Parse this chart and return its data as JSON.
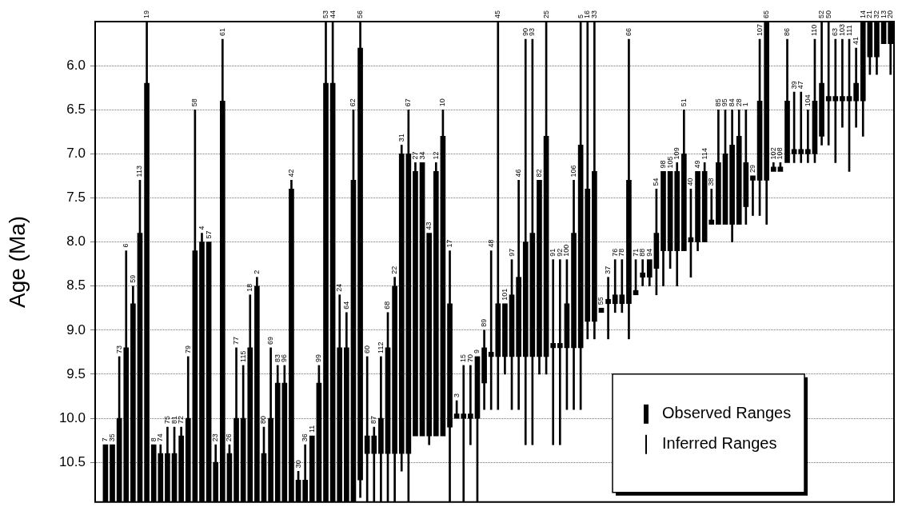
{
  "chart_data": {
    "type": "bar",
    "ylabel": "Age (Ma)",
    "categories": [
      "7",
      "35",
      "73",
      "6",
      "59",
      "113",
      "19",
      "8",
      "74",
      "75",
      "81",
      "72",
      "79",
      "58",
      "4",
      "57",
      "23",
      "61",
      "26",
      "77",
      "115",
      "18",
      "2",
      "80",
      "69",
      "83",
      "96",
      "42",
      "30",
      "36",
      "11",
      "99",
      "53",
      "44",
      "24",
      "64",
      "62",
      "56",
      "60",
      "87",
      "112",
      "68",
      "22",
      "31",
      "67",
      "27",
      "34",
      "43",
      "12",
      "10",
      "17",
      "3",
      "15",
      "70",
      "9",
      "89",
      "48",
      "45",
      "101",
      "97",
      "46",
      "90",
      "93",
      "82",
      "25",
      "91",
      "92",
      "100",
      "106",
      "5",
      "16",
      "33",
      "55",
      "37",
      "76",
      "78",
      "66",
      "71",
      "88",
      "94",
      "54",
      "98",
      "105",
      "109",
      "51",
      "40",
      "49",
      "114",
      "38",
      "85",
      "95",
      "84",
      "28",
      "1",
      "29",
      "107",
      "65",
      "102",
      "108",
      "86",
      "39",
      "47",
      "104",
      "110",
      "52",
      "50",
      "63",
      "103",
      "111",
      "41",
      "14",
      "21",
      "32",
      "13",
      "20"
    ],
    "series": [
      {
        "name": "Observed Ranges",
        "color": "#000000",
        "base": [
          10.3,
          10.3,
          10.0,
          9.2,
          8.7,
          7.9,
          6.2,
          10.3,
          10.4,
          10.4,
          10.4,
          10.2,
          10.0,
          8.1,
          8.0,
          8.0,
          10.5,
          6.4,
          10.4,
          10.0,
          10.0,
          9.2,
          8.5,
          10.4,
          10.0,
          9.6,
          9.6,
          7.4,
          10.7,
          10.7,
          10.2,
          9.6,
          6.2,
          6.2,
          9.2,
          9.2,
          7.3,
          5.8,
          10.2,
          10.2,
          10.0,
          9.2,
          8.5,
          7.0,
          7.0,
          7.2,
          7.1,
          7.9,
          7.2,
          6.8,
          8.7,
          9.95,
          9.95,
          9.95,
          9.3,
          9.2,
          9.25,
          8.7,
          8.7,
          8.6,
          8.4,
          8.0,
          7.9,
          7.3,
          6.8,
          9.15,
          9.15,
          8.7,
          7.9,
          6.9,
          7.4,
          7.2,
          8.75,
          8.65,
          8.6,
          8.6,
          7.3,
          8.55,
          8.35,
          8.2,
          7.9,
          7.2,
          7.2,
          7.2,
          7.0,
          7.95,
          7.2,
          7.2,
          7.75,
          7.1,
          7.0,
          6.9,
          6.8,
          7.1,
          7.25,
          6.4,
          5.5,
          7.15,
          7.15,
          6.4,
          6.95,
          6.95,
          6.95,
          6.4,
          6.2,
          6.35,
          6.35,
          6.35,
          6.35,
          6.2,
          5.5,
          5.5,
          5.5,
          5.5,
          5.5
        ],
        "values": [
          0.65,
          0.65,
          0.95,
          1.75,
          2.25,
          3.05,
          4.75,
          0.65,
          0.55,
          0.55,
          0.55,
          0.75,
          0.95,
          2.85,
          2.95,
          2.95,
          0.45,
          4.55,
          0.55,
          0.95,
          0.95,
          1.75,
          2.45,
          0.55,
          0.95,
          1.35,
          1.35,
          3.55,
          0.25,
          0.25,
          0.75,
          1.35,
          4.75,
          4.75,
          1.75,
          1.75,
          3.65,
          4.9,
          0.2,
          0.2,
          0.4,
          1.2,
          1.9,
          3.4,
          3.4,
          3.0,
          3.1,
          2.3,
          3.0,
          3.4,
          1.4,
          0.05,
          0.05,
          0.05,
          0.7,
          0.4,
          0.05,
          0.6,
          0.6,
          0.7,
          0.9,
          1.3,
          1.4,
          2.0,
          2.5,
          0.05,
          0.05,
          0.5,
          1.3,
          2.3,
          1.5,
          1.7,
          0.05,
          0.05,
          0.1,
          0.1,
          1.4,
          0.05,
          0.05,
          0.2,
          0.4,
          0.9,
          0.9,
          0.9,
          1.1,
          0.05,
          0.8,
          0.8,
          0.05,
          0.7,
          0.8,
          0.9,
          1.0,
          0.5,
          0.05,
          0.9,
          1.8,
          0.05,
          0.05,
          0.7,
          0.05,
          0.05,
          0.05,
          0.6,
          0.6,
          0.05,
          0.05,
          0.05,
          0.05,
          0.2,
          0.9,
          0.4,
          0.4,
          0.25,
          0.25
        ]
      },
      {
        "name": "Inferred Ranges",
        "color": "#000000",
        "base": [
          null,
          null,
          9.3,
          8.1,
          8.5,
          7.3,
          5.5,
          null,
          10.3,
          10.1,
          10.1,
          10.1,
          9.3,
          6.5,
          7.9,
          null,
          10.3,
          5.7,
          10.3,
          9.2,
          9.4,
          8.6,
          8.4,
          10.1,
          9.2,
          9.4,
          9.4,
          7.3,
          10.6,
          10.3,
          null,
          9.4,
          5.5,
          5.5,
          8.6,
          8.8,
          6.5,
          5.5,
          9.3,
          10.1,
          9.3,
          8.8,
          8.4,
          6.9,
          6.5,
          7.1,
          null,
          null,
          7.1,
          6.5,
          8.1,
          9.8,
          9.4,
          9.4,
          null,
          9.0,
          8.1,
          5.5,
          null,
          8.2,
          7.3,
          5.7,
          5.7,
          null,
          5.5,
          8.2,
          8.2,
          8.2,
          7.3,
          5.5,
          5.5,
          5.5,
          null,
          8.4,
          8.2,
          8.2,
          5.7,
          8.2,
          8.2,
          null,
          7.4,
          null,
          null,
          7.1,
          6.5,
          7.4,
          null,
          7.1,
          7.4,
          6.5,
          6.5,
          6.5,
          6.5,
          6.5,
          null,
          5.7,
          null,
          7.1,
          7.1,
          5.7,
          6.3,
          6.3,
          6.5,
          5.7,
          5.5,
          5.5,
          5.7,
          5.7,
          5.7,
          5.8,
          null,
          null,
          null,
          null,
          null
        ],
        "values": [
          null,
          null,
          0.7,
          1.1,
          0.2,
          0.6,
          0.7,
          null,
          0.1,
          0.3,
          0.3,
          0.1,
          0.7,
          1.6,
          0.1,
          null,
          0.2,
          0.7,
          0.1,
          0.8,
          0.6,
          0.6,
          0.1,
          0.3,
          0.8,
          0.2,
          0.2,
          0.1,
          0.1,
          0.4,
          null,
          0.2,
          0.7,
          0.7,
          0.6,
          0.4,
          0.8,
          0.3,
          0.9,
          0.1,
          0.7,
          0.4,
          0.1,
          0.1,
          0.5,
          0.1,
          null,
          null,
          0.1,
          0.3,
          0.6,
          0.15,
          0.55,
          0.55,
          null,
          0.2,
          1.15,
          3.2,
          null,
          0.4,
          1.1,
          2.3,
          2.2,
          null,
          1.3,
          0.95,
          0.95,
          0.5,
          0.6,
          1.4,
          1.9,
          1.7,
          null,
          0.25,
          0.4,
          0.4,
          1.6,
          0.35,
          0.15,
          null,
          0.5,
          null,
          null,
          0.1,
          0.5,
          0.55,
          null,
          0.1,
          0.35,
          0.6,
          0.5,
          0.4,
          0.3,
          0.6,
          null,
          0.7,
          null,
          0.05,
          0.05,
          0.7,
          0.65,
          0.65,
          0.45,
          0.7,
          0.7,
          0.85,
          0.65,
          0.65,
          0.65,
          0.4,
          null,
          null,
          null,
          null,
          null
        ]
      },
      {
        "color": "#000000",
        "base": [
          null,
          null,
          null,
          null,
          null,
          null,
          null,
          null,
          null,
          null,
          null,
          null,
          null,
          null,
          null,
          null,
          null,
          null,
          null,
          null,
          null,
          null,
          null,
          null,
          null,
          null,
          null,
          null,
          null,
          null,
          null,
          null,
          null,
          null,
          null,
          null,
          null,
          10.7,
          10.4,
          10.4,
          10.4,
          10.4,
          10.4,
          10.4,
          10.4,
          null,
          null,
          10.2,
          null,
          null,
          10.1,
          null,
          10.0,
          10.0,
          10.0,
          9.6,
          9.3,
          9.3,
          9.3,
          9.3,
          9.3,
          9.3,
          9.3,
          9.3,
          9.3,
          9.2,
          9.2,
          9.2,
          9.2,
          9.2,
          8.9,
          8.9,
          null,
          8.7,
          8.7,
          8.7,
          8.7,
          null,
          8.4,
          8.4,
          8.3,
          8.1,
          8.1,
          8.1,
          null,
          8.0,
          8.0,
          null,
          null,
          null,
          null,
          7.8,
          null,
          7.6,
          7.3,
          7.3,
          7.3,
          null,
          null,
          null,
          7.0,
          7.0,
          7.0,
          7.0,
          6.8,
          6.4,
          6.4,
          6.4,
          6.4,
          6.4,
          6.4,
          5.9,
          5.9,
          null,
          5.75
        ],
        "values": [
          null,
          null,
          null,
          null,
          null,
          null,
          null,
          null,
          null,
          null,
          null,
          null,
          null,
          null,
          null,
          null,
          null,
          null,
          null,
          null,
          null,
          null,
          null,
          null,
          null,
          null,
          null,
          null,
          null,
          null,
          null,
          null,
          null,
          null,
          null,
          null,
          null,
          0.2,
          0.55,
          0.55,
          0.55,
          0.55,
          0.55,
          0.2,
          0.55,
          null,
          null,
          0.1,
          null,
          null,
          0.85,
          null,
          0.95,
          0.3,
          0.95,
          0.3,
          0.6,
          0.6,
          0.2,
          0.6,
          0.6,
          1.0,
          1.0,
          0.2,
          0.2,
          1.1,
          1.1,
          0.7,
          0.7,
          0.7,
          0.2,
          0.2,
          null,
          0.4,
          0.1,
          0.1,
          0.4,
          null,
          0.1,
          0.1,
          0.3,
          0.4,
          0.2,
          0.4,
          null,
          0.4,
          0.1,
          null,
          null,
          null,
          null,
          0.2,
          null,
          0.2,
          0.4,
          0.4,
          0.5,
          null,
          null,
          null,
          0.1,
          0.1,
          0.1,
          0.1,
          0.1,
          0.5,
          0.7,
          0.3,
          0.8,
          0.3,
          0.4,
          0.2,
          0.2,
          null,
          0.35
        ]
      }
    ],
    "ylim": [
      10.95,
      5.5
    ],
    "yticks": [
      {
        "value": 6,
        "label": "6.0"
      },
      {
        "value": 6.5,
        "label": "6.5"
      },
      {
        "value": 7,
        "label": "7.0"
      },
      {
        "value": 7.5,
        "label": "7.5"
      },
      {
        "value": 8,
        "label": "8.0"
      },
      {
        "value": 8.5,
        "label": "8.5"
      },
      {
        "value": 9,
        "label": "9.0"
      },
      {
        "value": 9.5,
        "label": "9.5"
      },
      {
        "value": 10,
        "label": "10.0"
      },
      {
        "value": 10.5,
        "label": "10.5"
      }
    ],
    "grid": true,
    "legend": "bottom right"
  }
}
